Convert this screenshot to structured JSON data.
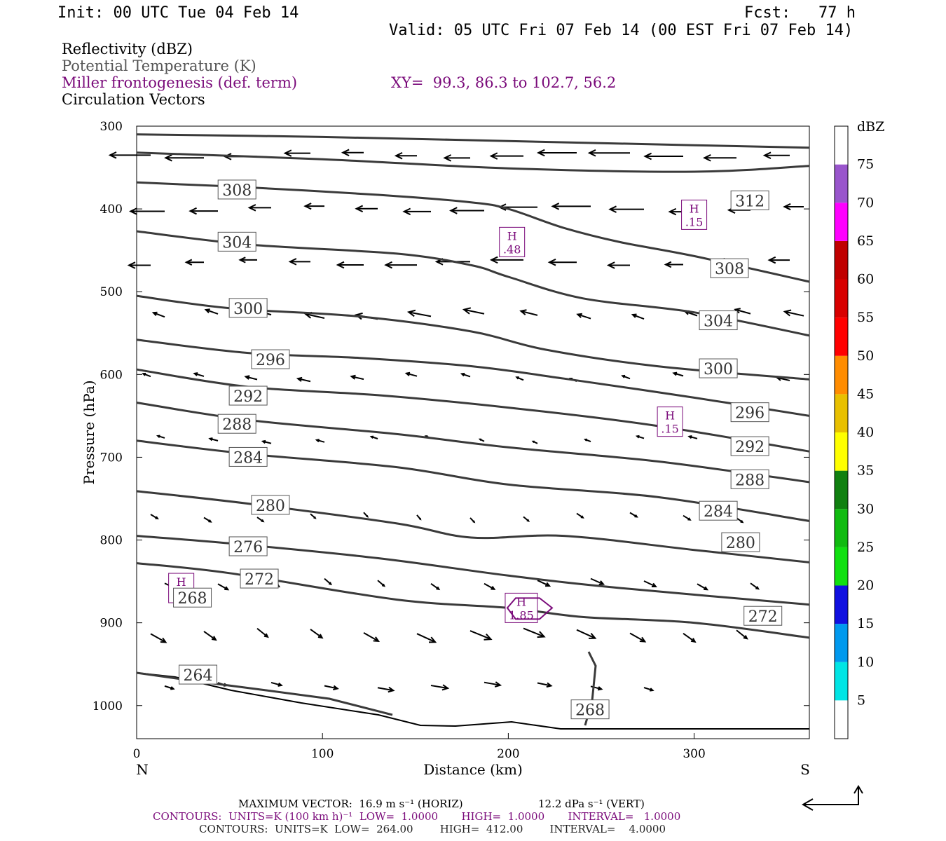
{
  "header": {
    "init": "Init: 00 UTC Tue 04 Feb 14",
    "fcst": "Fcst:   77 h",
    "valid": "Valid: 05 UTC Fri 07 Feb 14 (00 EST Fri 07 Feb 14)"
  },
  "fields": {
    "reflectivity": "Reflectivity (dBZ)",
    "theta": "Potential Temperature (K)",
    "frontogenesis": "Miller frontogenesis (def. term)",
    "xy": "XY=  99.3, 86.3 to 102.7, 56.2",
    "circulation": "Circulation Vectors"
  },
  "footer": {
    "max_vector_horiz": "MAXIMUM VECTOR:  16.9 m s⁻¹ (HORIZ)",
    "max_vector_vert": "12.2 dPa s⁻¹ (VERT)",
    "contours_fronto": "CONTOURS:  UNITS=K (100 km h)⁻¹  LOW=  1.0000       HIGH=  1.0000       INTERVAL=   1.0000",
    "contours_theta": "CONTOURS:  UNITS=K  LOW=  264.00        HIGH=  412.00        INTERVAL=    4.0000"
  },
  "colors": {
    "theta": "#3a3a3a",
    "fronto": "#7a0a7a",
    "vector": "#000000"
  },
  "chart_data": {
    "type": "cross-section",
    "xlabel": "Distance (km)",
    "ylabel": "Pressure (hPa)",
    "xlim": [
      0,
      362
    ],
    "ylim": [
      300,
      1040
    ],
    "y_reversed": true,
    "x_ticks": [
      0,
      100,
      200,
      300
    ],
    "y_ticks": [
      300,
      400,
      500,
      600,
      700,
      800,
      900,
      1000
    ],
    "x_end_labels": {
      "left": "N",
      "right": "S"
    },
    "colorbar": {
      "title": "dBZ",
      "levels": [
        5,
        10,
        15,
        20,
        25,
        30,
        35,
        40,
        45,
        50,
        55,
        60,
        65,
        70,
        75
      ],
      "colors": [
        "#ffffff",
        "#00e5e5",
        "#0099ee",
        "#1010e0",
        "#10e010",
        "#10bb10",
        "#108010",
        "#ffff00",
        "#e8c000",
        "#ff8c00",
        "#ff0000",
        "#d80000",
        "#c00000",
        "#ff00ff",
        "#9955cc",
        "#ffffff"
      ]
    },
    "theta_contours": [
      {
        "value": 312,
        "points": [
          [
            0,
            310
          ],
          [
            100,
            313
          ],
          [
            200,
            318
          ],
          [
            300,
            323
          ],
          [
            362,
            326
          ]
        ]
      },
      {
        "value": 308,
        "points": [
          [
            0,
            332
          ],
          [
            100,
            340
          ],
          [
            200,
            351
          ],
          [
            300,
            355
          ],
          [
            362,
            348
          ]
        ]
      },
      {
        "value": 304,
        "points": [
          [
            0,
            368
          ],
          [
            60,
            374
          ],
          [
            130,
            383
          ],
          [
            180,
            392
          ],
          [
            200,
            400
          ],
          [
            230,
            423
          ],
          [
            260,
            440
          ],
          [
            300,
            457
          ],
          [
            362,
            488
          ]
        ]
      },
      {
        "value": 300,
        "points": [
          [
            0,
            427
          ],
          [
            60,
            443
          ],
          [
            140,
            454
          ],
          [
            180,
            468
          ],
          [
            200,
            482
          ],
          [
            240,
            508
          ],
          [
            300,
            525
          ],
          [
            362,
            553
          ]
        ]
      },
      {
        "value": 296,
        "points": [
          [
            0,
            505
          ],
          [
            50,
            520
          ],
          [
            120,
            530
          ],
          [
            180,
            548
          ],
          [
            220,
            570
          ],
          [
            280,
            590
          ],
          [
            362,
            606
          ]
        ]
      },
      {
        "value": 292,
        "points": [
          [
            0,
            558
          ],
          [
            60,
            574
          ],
          [
            120,
            580
          ],
          [
            180,
            590
          ],
          [
            230,
            605
          ],
          [
            300,
            628
          ],
          [
            362,
            650
          ]
        ]
      },
      {
        "value": 288,
        "points": [
          [
            0,
            594
          ],
          [
            60,
            615
          ],
          [
            130,
            625
          ],
          [
            200,
            640
          ],
          [
            280,
            662
          ],
          [
            362,
            693
          ]
        ]
      },
      {
        "value": 284,
        "points": [
          [
            0,
            634
          ],
          [
            60,
            655
          ],
          [
            140,
            672
          ],
          [
            200,
            688
          ],
          [
            280,
            705
          ],
          [
            362,
            730
          ]
        ]
      },
      {
        "value": 280,
        "points": [
          [
            0,
            680
          ],
          [
            60,
            696
          ],
          [
            140,
            712
          ],
          [
            200,
            733
          ],
          [
            280,
            748
          ],
          [
            362,
            777
          ]
        ]
      },
      {
        "value": 276,
        "points": [
          [
            0,
            741
          ],
          [
            60,
            756
          ],
          [
            140,
            780
          ],
          [
            180,
            797
          ],
          [
            230,
            795
          ],
          [
            300,
            812
          ],
          [
            362,
            827
          ]
        ]
      },
      {
        "value": 272,
        "points": [
          [
            0,
            795
          ],
          [
            50,
            804
          ],
          [
            130,
            822
          ],
          [
            200,
            843
          ],
          [
            260,
            858
          ],
          [
            362,
            878
          ]
        ]
      },
      {
        "value": 268,
        "points": [
          [
            0,
            828
          ],
          [
            50,
            840
          ],
          [
            140,
            872
          ],
          [
            200,
            882
          ],
          [
            240,
            893
          ],
          [
            300,
            900
          ],
          [
            362,
            918
          ]
        ]
      }
    ],
    "fronto_maxima": [
      {
        "label": "H",
        "value": ".15",
        "x": 300,
        "p": 407
      },
      {
        "label": "H",
        "value": ".48",
        "x": 202,
        "p": 440
      },
      {
        "label": "H",
        "value": ".15",
        "x": 287,
        "p": 657
      },
      {
        "label": "H",
        "value": ".80",
        "x": 24,
        "p": 858
      },
      {
        "label": "H",
        "value": "1.85",
        "x": 207,
        "p": 882
      }
    ],
    "theta_labels": [
      {
        "text": "312",
        "x": 330,
        "p": 390
      },
      {
        "text": "308",
        "x": 54,
        "p": 377
      },
      {
        "text": "308",
        "x": 319,
        "p": 472
      },
      {
        "text": "304",
        "x": 54,
        "p": 440
      },
      {
        "text": "304",
        "x": 313,
        "p": 535
      },
      {
        "text": "300",
        "x": 60,
        "p": 520
      },
      {
        "text": "300",
        "x": 313,
        "p": 593
      },
      {
        "text": "296",
        "x": 72,
        "p": 582
      },
      {
        "text": "296",
        "x": 330,
        "p": 646
      },
      {
        "text": "292",
        "x": 60,
        "p": 626
      },
      {
        "text": "292",
        "x": 330,
        "p": 687
      },
      {
        "text": "288",
        "x": 54,
        "p": 660
      },
      {
        "text": "288",
        "x": 330,
        "p": 727
      },
      {
        "text": "284",
        "x": 60,
        "p": 700
      },
      {
        "text": "284",
        "x": 313,
        "p": 765
      },
      {
        "text": "280",
        "x": 72,
        "p": 758
      },
      {
        "text": "280",
        "x": 325,
        "p": 803
      },
      {
        "text": "276",
        "x": 60,
        "p": 808
      },
      {
        "text": "272",
        "x": 66,
        "p": 847
      },
      {
        "text": "272",
        "x": 337,
        "p": 892
      },
      {
        "text": "268",
        "x": 30,
        "p": 870
      },
      {
        "text": "268",
        "x": 244,
        "p": 1005
      },
      {
        "text": "264",
        "x": 33,
        "p": 963
      }
    ]
  }
}
